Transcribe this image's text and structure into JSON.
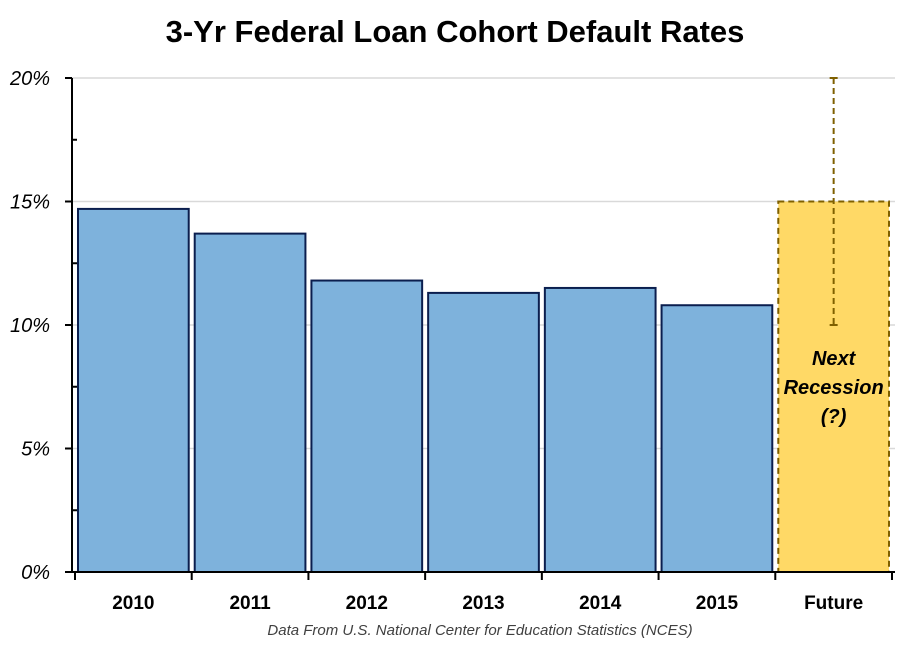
{
  "chart_data": {
    "type": "bar",
    "title": "3-Yr Federal Loan Cohort Default Rates",
    "categories": [
      "2010",
      "2011",
      "2012",
      "2013",
      "2014",
      "2015",
      "Future"
    ],
    "values": [
      14.7,
      13.7,
      11.8,
      11.3,
      11.5,
      10.8,
      15.0
    ],
    "yticks": [
      "0%",
      "5%",
      "10%",
      "15%",
      "20%"
    ],
    "ylim": [
      0,
      20
    ],
    "ylabel": "",
    "xlabel": "",
    "grid": true,
    "future_range": {
      "category": "Future",
      "low": 10,
      "high": 20
    },
    "annotation": [
      "Next",
      "Recession",
      "(?)"
    ],
    "source": "Data From U.S. National Center for Education Statistics (NCES)",
    "colors": {
      "bar_fill": "#7EB2DC",
      "bar_stroke": "#0B1E4E",
      "future_fill": "#FFD966",
      "future_stroke": "#7F6000",
      "gridline": "#D9D9D9"
    }
  }
}
